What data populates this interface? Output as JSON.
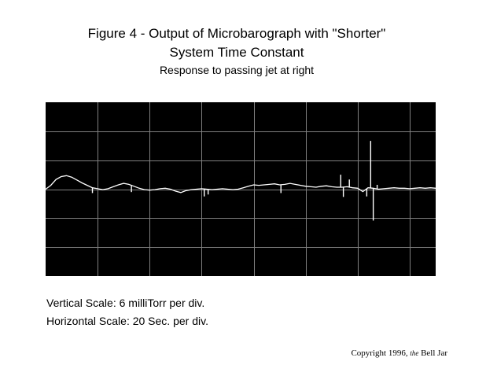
{
  "header": {
    "title_line1": "Figure 4 - Output of Microbarograph with \"Shorter\"",
    "title_line2": "System Time Constant",
    "subtitle": "Response to passing jet at right"
  },
  "scales": {
    "vertical": "Vertical Scale: 6 milliTorr per div.",
    "horizontal": "Horizontal Scale: 20 Sec. per div."
  },
  "copyright": {
    "prefix": "Copyright 1996,",
    "the": "the",
    "name": "Bell Jar"
  },
  "chart_data": {
    "type": "line",
    "x_unit": "seconds",
    "y_unit": "milliTorr",
    "xlim": [
      0,
      150
    ],
    "ylim": [
      -18,
      18
    ],
    "divisions": {
      "x_per_div": 20,
      "y_per_div": 6
    },
    "grid": true,
    "colors": {
      "background": "#000000",
      "grid": "#808080",
      "trace": "#ffffff"
    },
    "series": [
      {
        "x": [
          0,
          2,
          4,
          6,
          8,
          10,
          12,
          14,
          16,
          18,
          20,
          22,
          24,
          26,
          28,
          30,
          32,
          34,
          36,
          38,
          40,
          42,
          44,
          46,
          48,
          50,
          52,
          54,
          56,
          58,
          60,
          62,
          64,
          66,
          68,
          70,
          72,
          74,
          76,
          78,
          80,
          82,
          84,
          86,
          88,
          90,
          92,
          94,
          96,
          98,
          100,
          102,
          104,
          106,
          108,
          110,
          112,
          114,
          116,
          118,
          120,
          122,
          124,
          126,
          128,
          130,
          132,
          134,
          136,
          138,
          140,
          142,
          144,
          146,
          148,
          150
        ],
        "y": [
          0,
          0.8,
          2.0,
          2.6,
          2.8,
          2.5,
          1.9,
          1.3,
          0.8,
          0.3,
          0.1,
          -0.1,
          0.1,
          0.5,
          0.9,
          1.2,
          1.0,
          0.6,
          0.2,
          -0.1,
          -0.2,
          -0.1,
          0.1,
          0.2,
          0.0,
          -0.4,
          -0.7,
          -0.3,
          -0.1,
          0.0,
          0.1,
          0.0,
          -0.1,
          0.0,
          0.1,
          0.0,
          -0.1,
          0.0,
          0.3,
          0.6,
          0.9,
          0.8,
          0.9,
          1.0,
          1.1,
          0.9,
          1.0,
          1.2,
          1.0,
          0.8,
          0.6,
          0.5,
          0.4,
          0.6,
          0.7,
          0.5,
          0.4,
          0.4,
          0.5,
          0.3,
          0.2,
          -0.5,
          0.3,
          0.2,
          0.0,
          0.1,
          0.2,
          0.3,
          0.2,
          0.2,
          0.1,
          0.2,
          0.3,
          0.2,
          0.3,
          0.2
        ]
      }
    ],
    "spikes": [
      {
        "x": 113.5,
        "y": 3.0
      },
      {
        "x": 114.5,
        "y": -1.6
      },
      {
        "x": 116.8,
        "y": 2.0
      },
      {
        "x": 125.0,
        "y": 10.0
      },
      {
        "x": 126.0,
        "y": -6.5
      },
      {
        "x": 123.5,
        "y": -1.5
      },
      {
        "x": 127.5,
        "y": 0.9
      },
      {
        "x": 61.0,
        "y": -1.5
      },
      {
        "x": 62.5,
        "y": -1.1
      },
      {
        "x": 18.0,
        "y": -0.8
      },
      {
        "x": 33.0,
        "y": -0.6
      },
      {
        "x": 90.5,
        "y": -0.8
      }
    ]
  }
}
